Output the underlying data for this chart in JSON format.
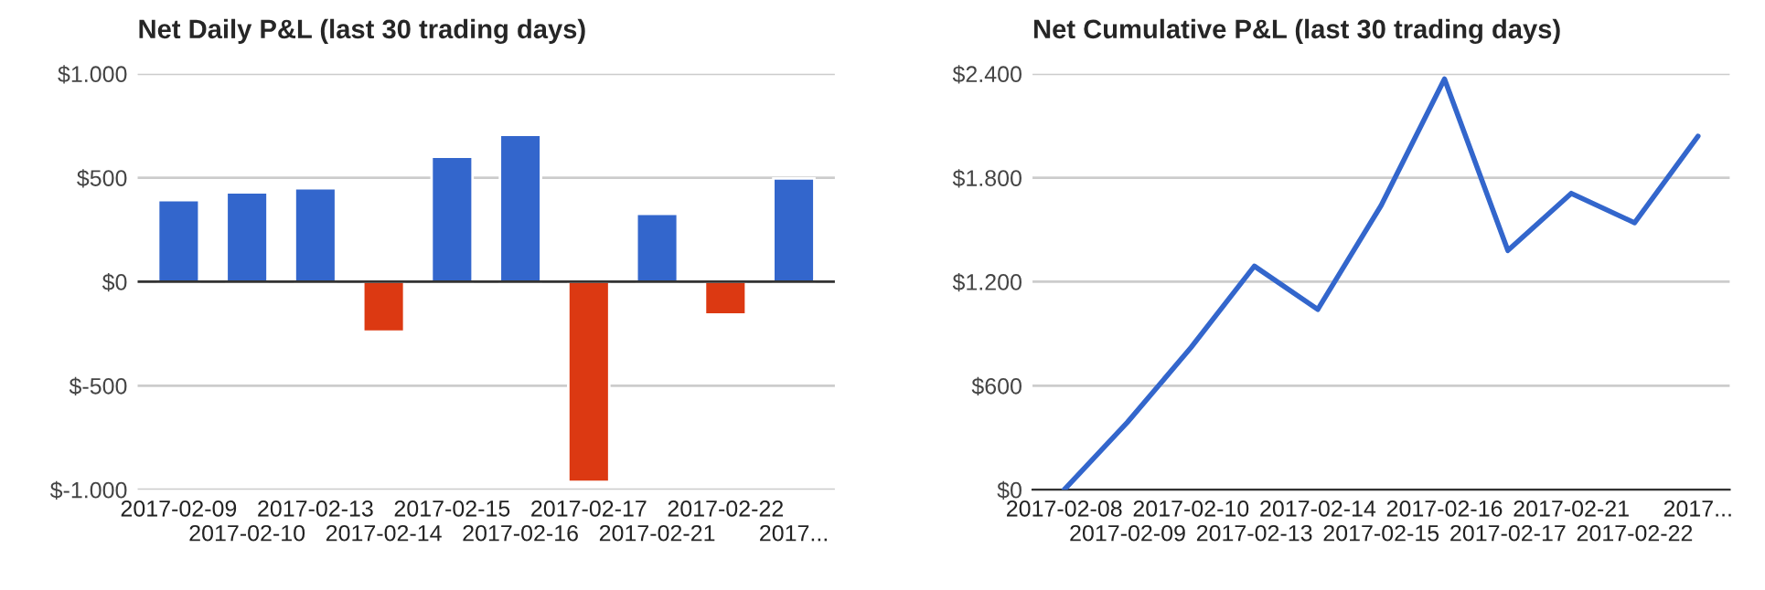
{
  "chart_data": [
    {
      "type": "bar",
      "title": "Net Daily P&L (last 30 trading days)",
      "categories": [
        "2017-02-09",
        "2017-02-10",
        "2017-02-13",
        "2017-02-14",
        "2017-02-15",
        "2017-02-16",
        "2017-02-17",
        "2017-02-21",
        "2017-02-22",
        "2017..."
      ],
      "values": [
        392,
        430,
        449,
        -240,
        601,
        706,
        -962,
        326,
        -158,
        497
      ],
      "colors": [
        "#3366cc",
        "#3366cc",
        "#3366cc",
        "#dc3912",
        "#3366cc",
        "#3366cc",
        "#dc3912",
        "#3366cc",
        "#dc3912",
        "#3366cc"
      ],
      "ylim": [
        -1000,
        1000
      ],
      "yticks": [
        {
          "value": -1000,
          "label": "$-1.000"
        },
        {
          "value": -500,
          "label": "$-500"
        },
        {
          "value": 0,
          "label": "$0"
        },
        {
          "value": 500,
          "label": "$500"
        },
        {
          "value": 1000,
          "label": "$1.000"
        }
      ],
      "grid": "y",
      "legend": false
    },
    {
      "type": "line",
      "title": "Net Cumulative P&L (last 30 trading days)",
      "categories": [
        "2017-02-08",
        "2017-02-09",
        "2017-02-10",
        "2017-02-13",
        "2017-02-14",
        "2017-02-15",
        "2017-02-16",
        "2017-02-17",
        "2017-02-21",
        "2017-02-22",
        "2017..."
      ],
      "series": [
        {
          "color": "#3366cc",
          "values": [
            0,
            390,
            820,
            1290,
            1040,
            1640,
            2370,
            1380,
            1710,
            1540,
            2040
          ]
        }
      ],
      "ylim": [
        0,
        2400
      ],
      "yticks": [
        {
          "value": 0,
          "label": "$0"
        },
        {
          "value": 600,
          "label": "$600"
        },
        {
          "value": 1200,
          "label": "$1.200"
        },
        {
          "value": 1800,
          "label": "$1.800"
        },
        {
          "value": 2400,
          "label": "$2.400"
        }
      ],
      "grid": "y",
      "legend": false,
      "marker": "none",
      "line_style": "solid"
    }
  ]
}
